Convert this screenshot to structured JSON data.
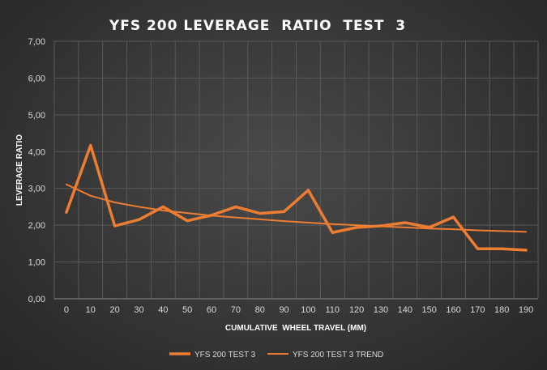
{
  "chart_data": {
    "type": "line",
    "title": "YFS 200 LEVERAGE  RATIO  TEST  3",
    "xlabel": "CUMULATIVE  WHEEL TRAVEL (MM)",
    "ylabel": "LEVERAGE RATIO",
    "x": [
      0,
      10,
      20,
      30,
      40,
      50,
      60,
      70,
      80,
      90,
      100,
      110,
      120,
      130,
      140,
      150,
      160,
      170,
      180,
      190
    ],
    "x_tick_labels": [
      "0",
      "10",
      "20",
      "30",
      "40",
      "50",
      "60",
      "70",
      "80",
      "90",
      "100",
      "110",
      "120",
      "130",
      "140",
      "150",
      "160",
      "170",
      "180",
      "190"
    ],
    "ylim": [
      0,
      7
    ],
    "y_ticks": [
      0,
      1,
      2,
      3,
      4,
      5,
      6,
      7
    ],
    "y_tick_labels": [
      "0,00",
      "1,00",
      "2,00",
      "3,00",
      "4,00",
      "5,00",
      "6,00",
      "7,00"
    ],
    "grid": true,
    "legend_position": "bottom",
    "series": [
      {
        "name": "YFS 200 TEST 3",
        "color": "#ed7d31",
        "style": "thick",
        "values": [
          2.35,
          4.17,
          1.98,
          2.15,
          2.5,
          2.12,
          2.27,
          2.5,
          2.32,
          2.37,
          2.95,
          1.8,
          1.94,
          1.98,
          2.07,
          1.94,
          2.22,
          1.36,
          1.36,
          1.32
        ]
      },
      {
        "name": "YFS 200 TEST 3 TREND",
        "color": "#ed7d31",
        "style": "thin",
        "values": [
          3.11,
          2.8,
          2.62,
          2.5,
          2.4,
          2.33,
          2.26,
          2.21,
          2.16,
          2.11,
          2.07,
          2.03,
          2.0,
          1.97,
          1.94,
          1.91,
          1.89,
          1.86,
          1.84,
          1.82
        ]
      }
    ]
  }
}
